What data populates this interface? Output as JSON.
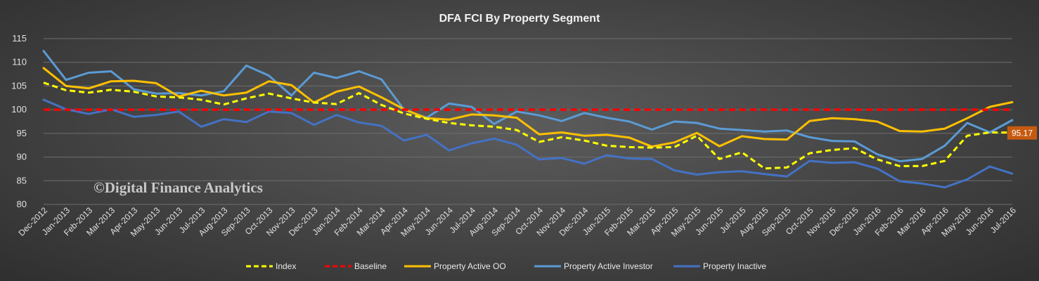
{
  "chart_data": {
    "type": "line",
    "title": "DFA FCI By Property Segment",
    "watermark": "©Digital Finance Analytics",
    "ylim": [
      80,
      115
    ],
    "yticks": [
      80,
      85,
      90,
      95,
      100,
      105,
      110,
      115
    ],
    "grid": true,
    "legend_position": "bottom",
    "categories": [
      "Dec-2012",
      "Jan-2013",
      "Feb-2013",
      "Mar-2013",
      "Apr-2013",
      "May-2013",
      "Jun-2013",
      "Jul-2013",
      "Aug-2013",
      "Sep-2013",
      "Oct-2013",
      "Nov-2013",
      "Dec-2013",
      "Jan-2014",
      "Feb-2014",
      "Mar-2014",
      "Apr-2014",
      "May-2014",
      "Jun-2014",
      "Jul-2014",
      "Aug-2014",
      "Sep-2014",
      "Oct-2014",
      "Nov-2014",
      "Dec-2014",
      "Jan-2015",
      "Feb-2015",
      "Mar-2015",
      "Apr-2015",
      "May-2015",
      "Jun-2015",
      "Jul-2015",
      "Aug-2015",
      "Sep-2015",
      "Oct-2015",
      "Nov-2015",
      "Dec-2015",
      "Jan-2016",
      "Feb-2016",
      "Mar-2016",
      "Apr-2016",
      "May-2016",
      "Jun-2016",
      "Jul-2016"
    ],
    "series": [
      {
        "name": "Index",
        "color": "#ffff00",
        "style": "dashed",
        "values": [
          105.7,
          104.1,
          103.6,
          104.2,
          103.8,
          102.8,
          102.6,
          102.1,
          101.1,
          102.4,
          103.4,
          102.4,
          101.5,
          101.2,
          103.5,
          101.0,
          99.2,
          98.1,
          97.2,
          96.7,
          96.4,
          95.7,
          93.2,
          94.2,
          93.5,
          92.4,
          92.1,
          92.0,
          92.1,
          94.5,
          89.6,
          91.0,
          87.6,
          87.8,
          90.8,
          91.5,
          91.9,
          89.5,
          88.1,
          88.1,
          89.2,
          94.5,
          95.2,
          95.17
        ]
      },
      {
        "name": "Baseline",
        "color": "#ff0000",
        "style": "dashed",
        "values": [
          100,
          100,
          100,
          100,
          100,
          100,
          100,
          100,
          100,
          100,
          100,
          100,
          100,
          100,
          100,
          100,
          100,
          100,
          100,
          100,
          100,
          100,
          100,
          100,
          100,
          100,
          100,
          100,
          100,
          100,
          100,
          100,
          100,
          100,
          100,
          100,
          100,
          100,
          100,
          100,
          100,
          100,
          100,
          100
        ]
      },
      {
        "name": "Property Active OO",
        "color": "#ffc000",
        "style": "solid",
        "values": [
          108.8,
          105.0,
          104.5,
          106.0,
          106.1,
          105.6,
          102.8,
          104.0,
          103.0,
          103.6,
          106.0,
          105.2,
          101.5,
          103.8,
          104.9,
          102.6,
          100.1,
          98.2,
          97.9,
          99.0,
          98.8,
          98.3,
          94.8,
          95.2,
          94.5,
          94.7,
          94.1,
          92.2,
          93.1,
          95.1,
          92.3,
          94.4,
          93.8,
          93.7,
          97.6,
          98.2,
          98.0,
          97.5,
          95.5,
          95.4,
          96.0,
          98.2,
          100.6,
          101.6
        ]
      },
      {
        "name": "Property Active Investor",
        "color": "#5b9bd5",
        "style": "solid",
        "values": [
          112.4,
          106.3,
          107.8,
          108.1,
          104.3,
          103.4,
          103.5,
          103.0,
          103.9,
          109.3,
          107.2,
          103.0,
          107.8,
          106.7,
          108.1,
          106.4,
          100.0,
          98.3,
          101.3,
          100.6,
          97.0,
          99.6,
          98.8,
          97.6,
          99.3,
          98.3,
          97.5,
          95.8,
          97.5,
          97.2,
          96.0,
          95.7,
          95.4,
          95.6,
          94.2,
          93.4,
          93.3,
          90.6,
          89.1,
          89.6,
          92.4,
          97.2,
          95.2,
          97.8
        ]
      },
      {
        "name": "Property Inactive",
        "color": "#4472c4",
        "style": "solid",
        "values": [
          102.1,
          100.1,
          99.1,
          100.1,
          98.5,
          98.9,
          99.6,
          96.4,
          98.0,
          97.4,
          99.6,
          99.3,
          96.8,
          98.9,
          97.3,
          96.6,
          93.5,
          94.7,
          91.4,
          92.9,
          93.9,
          92.6,
          89.5,
          89.8,
          88.6,
          90.4,
          89.7,
          89.6,
          87.2,
          86.3,
          86.8,
          87.0,
          86.4,
          85.9,
          89.2,
          88.8,
          88.9,
          87.6,
          84.9,
          84.4,
          83.6,
          85.3,
          88.0,
          86.5
        ]
      }
    ],
    "annotations": [
      {
        "text": "95.17",
        "series": "Index",
        "category": "Jul-2016",
        "color": "#c55a11"
      }
    ]
  }
}
